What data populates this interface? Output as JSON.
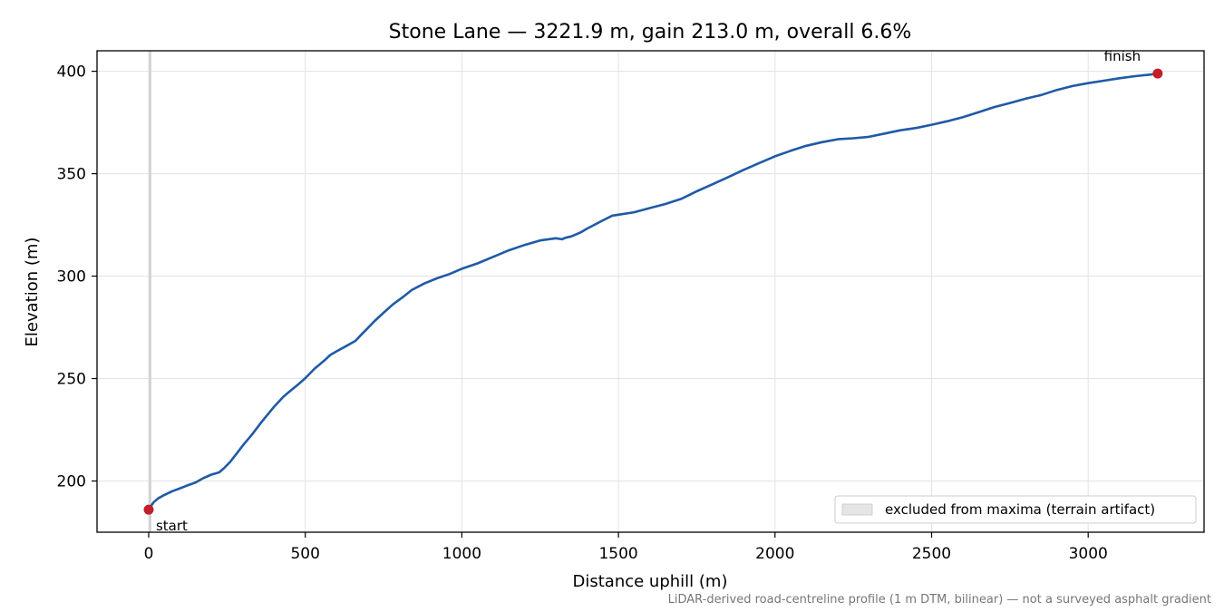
{
  "chart_data": {
    "type": "line",
    "title": "Stone Lane — 3221.9 m, gain 213.0 m, overall 6.6%",
    "xlabel": "Distance uphill (m)",
    "ylabel": "Elevation (m)",
    "xlim": [
      -165,
      3370
    ],
    "ylim": [
      175,
      410
    ],
    "xticks": [
      0,
      500,
      1000,
      1500,
      2000,
      2500,
      3000
    ],
    "xtick_labels": [
      "0",
      "500",
      "1000",
      "1500",
      "2000",
      "2500",
      "3000"
    ],
    "yticks": [
      200,
      250,
      300,
      350,
      400
    ],
    "ytick_labels": [
      "200",
      "250",
      "300",
      "350",
      "400"
    ],
    "grid": true,
    "legend_position": "lower-right",
    "series": [
      {
        "color": "#1f5aa6",
        "x": [
          0,
          15,
          30,
          50,
          75,
          100,
          120,
          150,
          175,
          200,
          225,
          240,
          260,
          280,
          300,
          330,
          360,
          400,
          430,
          450,
          480,
          500,
          530,
          560,
          580,
          600,
          630,
          660,
          680,
          700,
          720,
          750,
          780,
          810,
          840,
          880,
          920,
          960,
          1000,
          1050,
          1100,
          1150,
          1200,
          1250,
          1300,
          1320,
          1330,
          1350,
          1380,
          1400,
          1450,
          1480,
          1500,
          1550,
          1600,
          1650,
          1700,
          1750,
          1800,
          1850,
          1900,
          1950,
          2000,
          2050,
          2100,
          2150,
          2200,
          2250,
          2300,
          2350,
          2400,
          2450,
          2500,
          2550,
          2600,
          2650,
          2700,
          2750,
          2800,
          2850,
          2900,
          2950,
          3000,
          3050,
          3100,
          3150,
          3200,
          3222
        ],
        "y": [
          186.0,
          189.5,
          191.5,
          193.2,
          195.0,
          196.4,
          197.6,
          199.3,
          201.4,
          203.1,
          204.2,
          206.2,
          209.3,
          213.2,
          217.2,
          222.7,
          228.7,
          236.2,
          241.1,
          243.7,
          247.5,
          250.2,
          254.9,
          258.7,
          261.5,
          263.3,
          265.8,
          268.4,
          271.6,
          274.7,
          277.9,
          282.1,
          286.2,
          289.6,
          293.2,
          296.4,
          298.9,
          301.0,
          303.6,
          306.2,
          309.4,
          312.6,
          315.2,
          317.4,
          318.5,
          318.0,
          318.7,
          319.4,
          321.4,
          323.2,
          327.2,
          329.5,
          330.0,
          331.2,
          333.2,
          335.2,
          337.7,
          341.4,
          344.8,
          348.3,
          351.9,
          355.2,
          358.5,
          361.2,
          363.6,
          365.4,
          366.8,
          367.3,
          368.0,
          369.6,
          371.2,
          372.3,
          373.9,
          375.6,
          377.6,
          380.0,
          382.5,
          384.5,
          386.6,
          388.4,
          390.9,
          392.8,
          394.2,
          395.4,
          396.6,
          397.6,
          398.4,
          398.9
        ]
      }
    ],
    "excluded_band": {
      "x": [
        0,
        8
      ],
      "color": "#d4d4d4"
    },
    "points": [
      {
        "x": 0,
        "y": 186.0,
        "label": "start",
        "color": "#c41e2a"
      },
      {
        "x": 3222,
        "y": 398.9,
        "label": "finish",
        "color": "#c41e2a"
      }
    ],
    "legend": [
      {
        "label": "excluded from maxima (terrain artifact)",
        "swatch_color": "#e5e5e3"
      }
    ],
    "footnote": "LiDAR-derived road-centreline profile (1 m DTM, bilinear) — not a surveyed asphalt gradient"
  }
}
